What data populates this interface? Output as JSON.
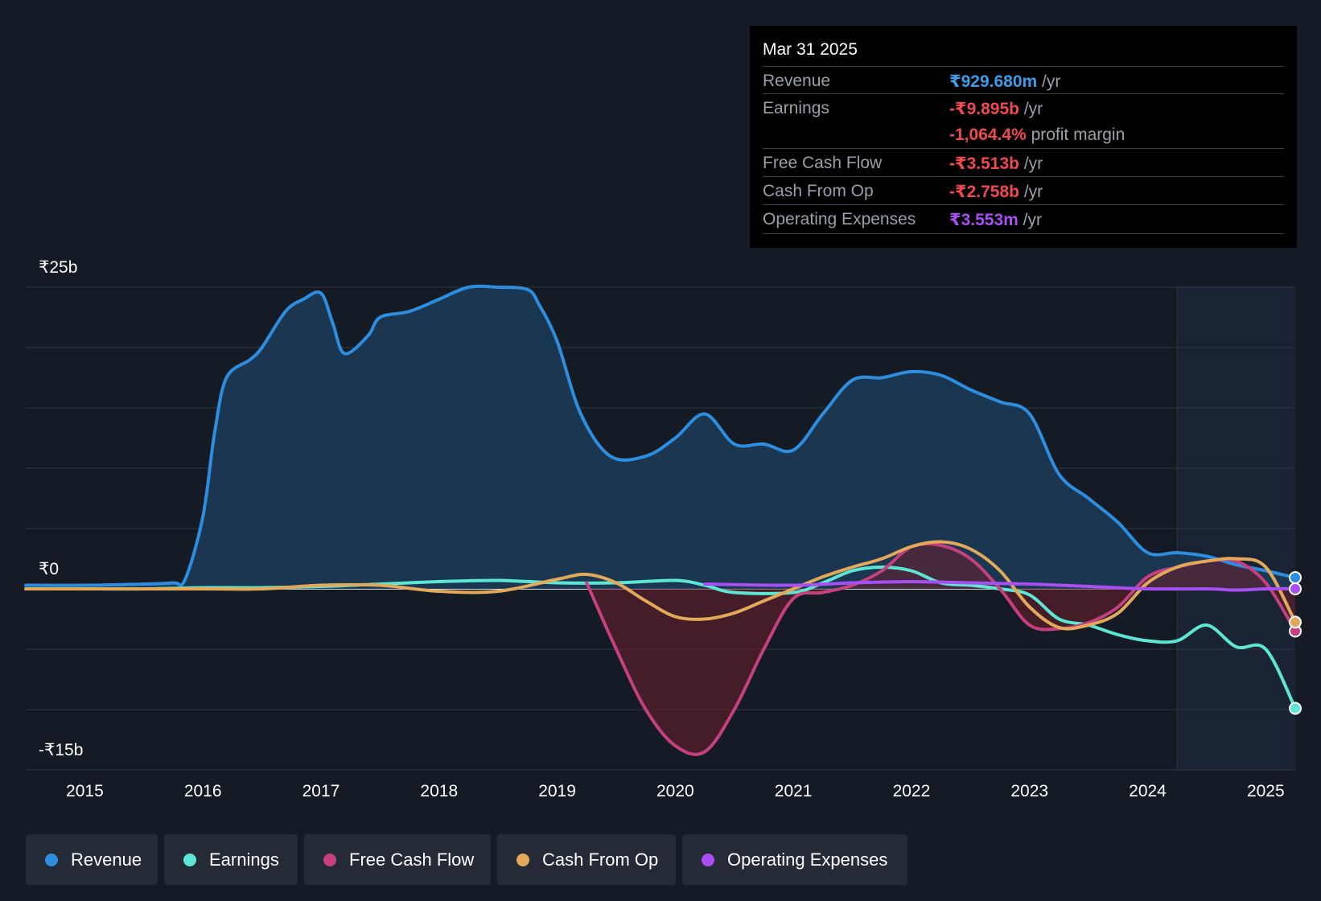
{
  "tooltip": {
    "date": "Mar 31 2025",
    "rows": [
      {
        "label": "Revenue",
        "value": "₹929.680m",
        "unit": "/yr",
        "color": "#3b9ee8"
      },
      {
        "label": "Earnings",
        "value": "-₹9.895b",
        "unit": "/yr",
        "color": "#f04950"
      },
      {
        "label": "",
        "value": "-1,064.4%",
        "unit": "profit margin",
        "color": "#f04950"
      },
      {
        "label": "Free Cash Flow",
        "value": "-₹3.513b",
        "unit": "/yr",
        "color": "#f04950"
      },
      {
        "label": "Cash From Op",
        "value": "-₹2.758b",
        "unit": "/yr",
        "color": "#f04950"
      },
      {
        "label": "Operating Expenses",
        "value": "₹3.553m",
        "unit": "/yr",
        "color": "#a74ff2"
      }
    ]
  },
  "legend": [
    {
      "label": "Revenue",
      "color": "#2d8ee0"
    },
    {
      "label": "Earnings",
      "color": "#5ee6d4"
    },
    {
      "label": "Free Cash Flow",
      "color": "#c5407e"
    },
    {
      "label": "Cash From Op",
      "color": "#e3a95a"
    },
    {
      "label": "Operating Expenses",
      "color": "#a74ff2"
    }
  ],
  "chart_data": {
    "type": "area",
    "y_tick_labels": [
      "₹25b",
      "₹0",
      "-₹15b"
    ],
    "ylim": [
      -15,
      25
    ],
    "xlim": [
      2014.5,
      2025.25
    ],
    "x_ticks": [
      2015,
      2016,
      2017,
      2018,
      2019,
      2020,
      2021,
      2022,
      2023,
      2024,
      2025
    ],
    "x_tick_labels": [
      "2015",
      "2016",
      "2017",
      "2018",
      "2019",
      "2020",
      "2021",
      "2022",
      "2023",
      "2024",
      "2025"
    ],
    "y_unit": "₹b",
    "forecast_shade_from": 2024.25,
    "grid": true,
    "series": [
      {
        "name": "Revenue",
        "color": "#2d8ee0",
        "fill": true,
        "points": [
          [
            2014.5,
            0.3
          ],
          [
            2015.0,
            0.3
          ],
          [
            2015.5,
            0.4
          ],
          [
            2015.75,
            0.5
          ],
          [
            2015.85,
            0.8
          ],
          [
            2016.0,
            6.0
          ],
          [
            2016.1,
            13.0
          ],
          [
            2016.2,
            17.5
          ],
          [
            2016.4,
            19.0
          ],
          [
            2016.5,
            20.0
          ],
          [
            2016.7,
            23.0
          ],
          [
            2016.85,
            24.0
          ],
          [
            2017.0,
            24.5
          ],
          [
            2017.1,
            22.0
          ],
          [
            2017.2,
            19.5
          ],
          [
            2017.4,
            21.0
          ],
          [
            2017.5,
            22.5
          ],
          [
            2017.75,
            23.0
          ],
          [
            2018.0,
            24.0
          ],
          [
            2018.25,
            25.0
          ],
          [
            2018.5,
            25.0
          ],
          [
            2018.75,
            24.8
          ],
          [
            2018.85,
            23.5
          ],
          [
            2019.0,
            20.5
          ],
          [
            2019.2,
            14.5
          ],
          [
            2019.45,
            11.0
          ],
          [
            2019.75,
            11.0
          ],
          [
            2020.0,
            12.5
          ],
          [
            2020.25,
            14.5
          ],
          [
            2020.5,
            12.0
          ],
          [
            2020.75,
            12.0
          ],
          [
            2021.0,
            11.5
          ],
          [
            2021.25,
            14.5
          ],
          [
            2021.5,
            17.3
          ],
          [
            2021.75,
            17.5
          ],
          [
            2022.0,
            18.0
          ],
          [
            2022.25,
            17.7
          ],
          [
            2022.5,
            16.5
          ],
          [
            2022.75,
            15.5
          ],
          [
            2023.0,
            14.5
          ],
          [
            2023.25,
            9.5
          ],
          [
            2023.5,
            7.5
          ],
          [
            2023.75,
            5.5
          ],
          [
            2024.0,
            3.0
          ],
          [
            2024.25,
            3.0
          ],
          [
            2024.5,
            2.7
          ],
          [
            2024.75,
            2.0
          ],
          [
            2025.0,
            1.5
          ],
          [
            2025.25,
            0.93
          ]
        ]
      },
      {
        "name": "Earnings",
        "color": "#5ee6d4",
        "fill": false,
        "points": [
          [
            2014.5,
            0.0
          ],
          [
            2015.0,
            0.0
          ],
          [
            2015.5,
            0.0
          ],
          [
            2016.0,
            0.1
          ],
          [
            2016.5,
            0.1
          ],
          [
            2017.0,
            0.2
          ],
          [
            2017.5,
            0.4
          ],
          [
            2018.0,
            0.6
          ],
          [
            2018.5,
            0.7
          ],
          [
            2019.0,
            0.5
          ],
          [
            2019.5,
            0.5
          ],
          [
            2020.0,
            0.7
          ],
          [
            2020.25,
            0.3
          ],
          [
            2020.5,
            -0.3
          ],
          [
            2021.0,
            -0.3
          ],
          [
            2021.25,
            0.5
          ],
          [
            2021.5,
            1.5
          ],
          [
            2021.75,
            1.8
          ],
          [
            2022.0,
            1.5
          ],
          [
            2022.25,
            0.5
          ],
          [
            2022.5,
            0.3
          ],
          [
            2022.75,
            0.0
          ],
          [
            2023.0,
            -0.5
          ],
          [
            2023.25,
            -2.5
          ],
          [
            2023.5,
            -3.0
          ],
          [
            2023.75,
            -3.8
          ],
          [
            2024.0,
            -4.3
          ],
          [
            2024.25,
            -4.3
          ],
          [
            2024.5,
            -3.0
          ],
          [
            2024.75,
            -4.8
          ],
          [
            2025.0,
            -5.0
          ],
          [
            2025.25,
            -9.9
          ]
        ]
      },
      {
        "name": "Free Cash Flow",
        "color": "#c5407e",
        "fill": true,
        "points": [
          [
            2019.25,
            0.5
          ],
          [
            2019.5,
            -5.0
          ],
          [
            2019.75,
            -10.0
          ],
          [
            2020.0,
            -13.0
          ],
          [
            2020.25,
            -13.5
          ],
          [
            2020.5,
            -10.0
          ],
          [
            2020.75,
            -5.0
          ],
          [
            2021.0,
            -0.8
          ],
          [
            2021.25,
            -0.3
          ],
          [
            2021.5,
            0.3
          ],
          [
            2021.75,
            1.5
          ],
          [
            2022.0,
            3.5
          ],
          [
            2022.25,
            3.6
          ],
          [
            2022.5,
            2.5
          ],
          [
            2022.75,
            0.0
          ],
          [
            2023.0,
            -3.0
          ],
          [
            2023.25,
            -3.3
          ],
          [
            2023.5,
            -2.8
          ],
          [
            2023.75,
            -1.5
          ],
          [
            2024.0,
            1.0
          ],
          [
            2024.25,
            1.8
          ],
          [
            2024.5,
            2.3
          ],
          [
            2024.75,
            2.3
          ],
          [
            2025.0,
            0.5
          ],
          [
            2025.25,
            -3.5
          ]
        ]
      },
      {
        "name": "Cash From Op",
        "color": "#e3a95a",
        "fill": false,
        "points": [
          [
            2014.5,
            0.0
          ],
          [
            2015.0,
            0.0
          ],
          [
            2015.5,
            0.0
          ],
          [
            2016.0,
            0.0
          ],
          [
            2016.5,
            0.0
          ],
          [
            2017.0,
            0.3
          ],
          [
            2017.5,
            0.3
          ],
          [
            2018.0,
            -0.2
          ],
          [
            2018.5,
            -0.2
          ],
          [
            2019.0,
            0.8
          ],
          [
            2019.25,
            1.2
          ],
          [
            2019.5,
            0.5
          ],
          [
            2019.75,
            -1.0
          ],
          [
            2020.0,
            -2.3
          ],
          [
            2020.25,
            -2.5
          ],
          [
            2020.5,
            -2.0
          ],
          [
            2020.75,
            -1.0
          ],
          [
            2021.0,
            0.0
          ],
          [
            2021.25,
            1.0
          ],
          [
            2021.5,
            1.8
          ],
          [
            2021.75,
            2.5
          ],
          [
            2022.0,
            3.5
          ],
          [
            2022.25,
            3.9
          ],
          [
            2022.5,
            3.3
          ],
          [
            2022.75,
            1.5
          ],
          [
            2023.0,
            -1.5
          ],
          [
            2023.25,
            -3.2
          ],
          [
            2023.5,
            -3.0
          ],
          [
            2023.75,
            -2.0
          ],
          [
            2024.0,
            0.5
          ],
          [
            2024.25,
            1.8
          ],
          [
            2024.5,
            2.3
          ],
          [
            2024.75,
            2.5
          ],
          [
            2025.0,
            1.8
          ],
          [
            2025.25,
            -2.76
          ]
        ]
      },
      {
        "name": "Operating Expenses",
        "color": "#a74ff2",
        "fill": false,
        "points": [
          [
            2020.25,
            0.4
          ],
          [
            2021.0,
            0.3
          ],
          [
            2021.5,
            0.5
          ],
          [
            2022.0,
            0.6
          ],
          [
            2022.5,
            0.5
          ],
          [
            2023.0,
            0.4
          ],
          [
            2023.5,
            0.2
          ],
          [
            2024.0,
            0.0
          ],
          [
            2024.5,
            0.0
          ],
          [
            2024.75,
            -0.1
          ],
          [
            2025.0,
            0.0
          ],
          [
            2025.25,
            0.004
          ]
        ]
      }
    ]
  }
}
